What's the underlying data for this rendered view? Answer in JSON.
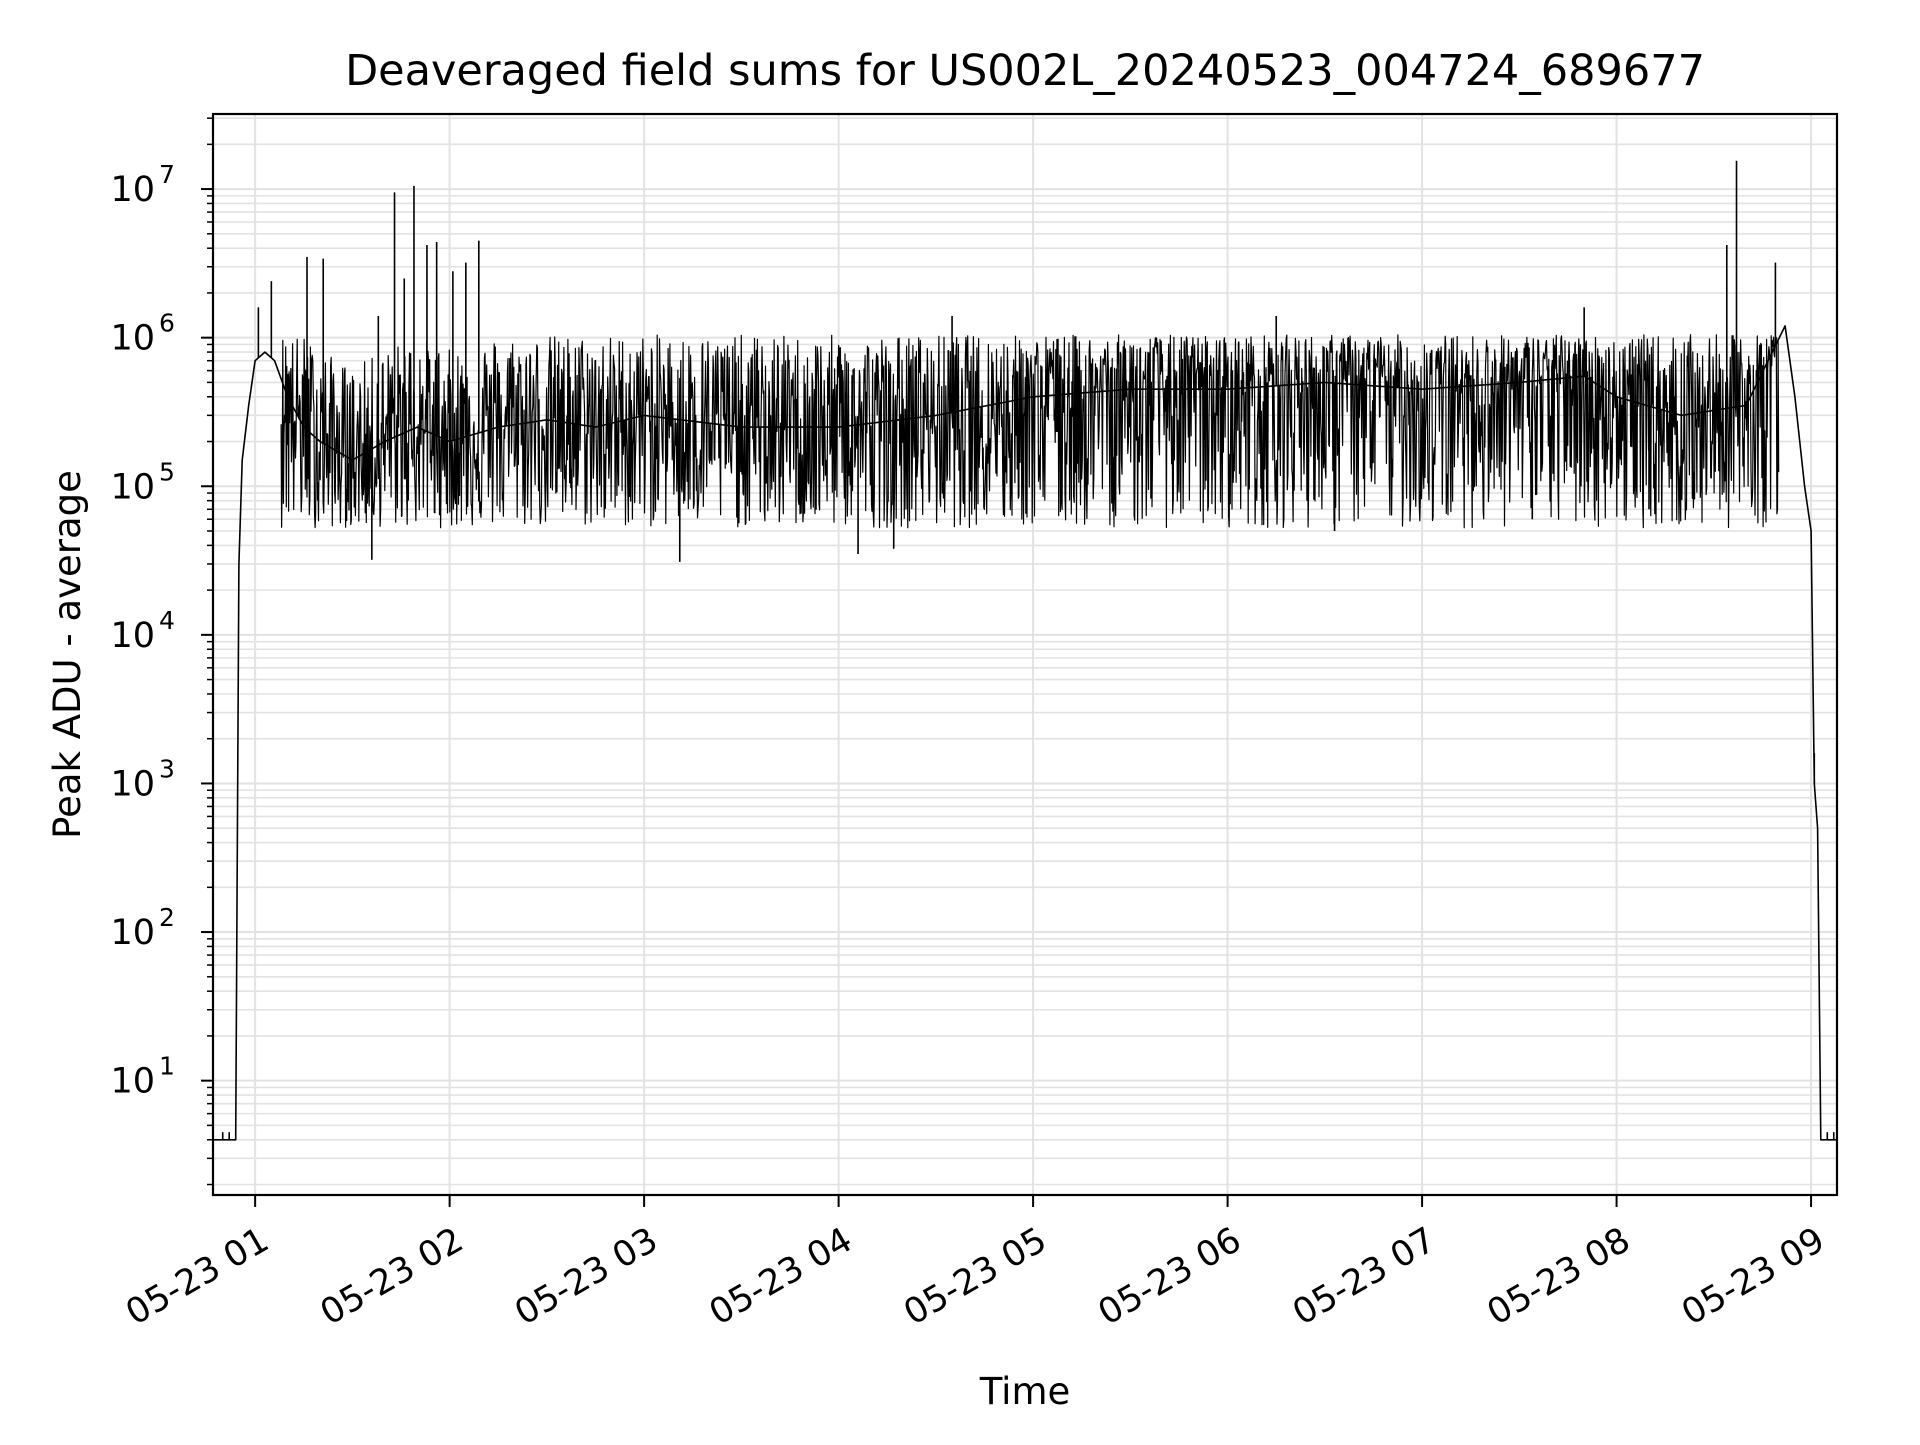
{
  "chart_data": {
    "type": "line",
    "title": "Deaveraged field sums for US002L_20240523_004724_689677",
    "xlabel": "Time",
    "ylabel": "Peak ADU - average",
    "yscale": "log",
    "ylim": [
      1.7,
      32000000.0
    ],
    "xlim": [
      "2024-05-23 00:47",
      "2024-05-23 09:08"
    ],
    "grid": true,
    "x_ticks": [
      {
        "value": "2024-05-23 01:00",
        "label": "05-23 01"
      },
      {
        "value": "2024-05-23 02:00",
        "label": "05-23 02"
      },
      {
        "value": "2024-05-23 03:00",
        "label": "05-23 03"
      },
      {
        "value": "2024-05-23 04:00",
        "label": "05-23 04"
      },
      {
        "value": "2024-05-23 05:00",
        "label": "05-23 05"
      },
      {
        "value": "2024-05-23 06:00",
        "label": "05-23 06"
      },
      {
        "value": "2024-05-23 07:00",
        "label": "05-23 07"
      },
      {
        "value": "2024-05-23 08:00",
        "label": "05-23 08"
      },
      {
        "value": "2024-05-23 09:00",
        "label": "05-23 09"
      }
    ],
    "y_ticks": [
      {
        "value": 10,
        "base": "10",
        "exp": "1"
      },
      {
        "value": 100,
        "base": "10",
        "exp": "2"
      },
      {
        "value": 1000,
        "base": "10",
        "exp": "3"
      },
      {
        "value": 10000,
        "base": "10",
        "exp": "4"
      },
      {
        "value": 100000,
        "base": "10",
        "exp": "5"
      },
      {
        "value": 1000000,
        "base": "10",
        "exp": "6"
      },
      {
        "value": 10000000,
        "base": "10",
        "exp": "7"
      }
    ],
    "series": [
      {
        "color": "#000000",
        "x": [
          "2024-05-23 00:47",
          "2024-05-23 00:54",
          "2024-05-23 00:55",
          "2024-05-23 00:56",
          "2024-05-23 00:58",
          "2024-05-23 01:00",
          "2024-05-23 01:03",
          "2024-05-23 01:06",
          "2024-05-23 01:10",
          "2024-05-23 01:15",
          "2024-05-23 01:20",
          "2024-05-23 01:30",
          "2024-05-23 01:40",
          "2024-05-23 01:50",
          "2024-05-23 02:00",
          "2024-05-23 02:15",
          "2024-05-23 02:30",
          "2024-05-23 02:45",
          "2024-05-23 03:00",
          "2024-05-23 03:30",
          "2024-05-23 04:00",
          "2024-05-23 04:30",
          "2024-05-23 05:00",
          "2024-05-23 05:30",
          "2024-05-23 06:00",
          "2024-05-23 06:30",
          "2024-05-23 07:00",
          "2024-05-23 07:30",
          "2024-05-23 07:50",
          "2024-05-23 08:00",
          "2024-05-23 08:20",
          "2024-05-23 08:40",
          "2024-05-23 08:48",
          "2024-05-23 08:52",
          "2024-05-23 08:55",
          "2024-05-23 08:58",
          "2024-05-23 09:00",
          "2024-05-23 09:01",
          "2024-05-23 09:02",
          "2024-05-23 09:03",
          "2024-05-23 09:08"
        ],
        "y": [
          4,
          4,
          30000,
          150000,
          350000,
          700000,
          800000,
          700000,
          400000,
          250000,
          200000,
          150000,
          200000,
          250000,
          200000,
          250000,
          280000,
          250000,
          300000,
          250000,
          250000,
          300000,
          400000,
          450000,
          450000,
          500000,
          450000,
          500000,
          550000,
          400000,
          300000,
          350000,
          800000,
          1200000,
          400000,
          100000,
          50000,
          1000,
          500,
          4,
          4
        ]
      }
    ],
    "spikes": [
      {
        "x": "2024-05-23 00:50",
        "y": 4.5
      },
      {
        "x": "2024-05-23 00:52",
        "y": 4.5
      },
      {
        "x": "2024-05-23 01:01",
        "y": 1600000
      },
      {
        "x": "2024-05-23 01:05",
        "y": 2400000
      },
      {
        "x": "2024-05-23 01:16",
        "y": 3500000
      },
      {
        "x": "2024-05-23 01:21",
        "y": 3400000
      },
      {
        "x": "2024-05-23 01:38",
        "y": 1400000
      },
      {
        "x": "2024-05-23 01:43",
        "y": 9500000
      },
      {
        "x": "2024-05-23 01:46",
        "y": 2500000
      },
      {
        "x": "2024-05-23 01:49",
        "y": 10500000
      },
      {
        "x": "2024-05-23 01:53",
        "y": 4200000
      },
      {
        "x": "2024-05-23 01:56",
        "y": 4400000
      },
      {
        "x": "2024-05-23 02:01",
        "y": 2800000
      },
      {
        "x": "2024-05-23 02:05",
        "y": 3200000
      },
      {
        "x": "2024-05-23 02:09",
        "y": 4500000
      },
      {
        "x": "2024-05-23 04:35",
        "y": 1400000
      },
      {
        "x": "2024-05-23 06:15",
        "y": 1400000
      },
      {
        "x": "2024-05-23 07:50",
        "y": 1600000
      },
      {
        "x": "2024-05-23 08:34",
        "y": 4200000
      },
      {
        "x": "2024-05-23 08:37",
        "y": 15500000
      },
      {
        "x": "2024-05-23 08:49",
        "y": 3200000
      },
      {
        "x": "2024-05-23 09:01",
        "y": 1600
      },
      {
        "x": "2024-05-23 09:05",
        "y": 4.5
      },
      {
        "x": "2024-05-23 09:07",
        "y": 4.5
      }
    ],
    "dips": [
      {
        "x": "2024-05-23 01:36",
        "y": 32000
      },
      {
        "x": "2024-05-23 03:11",
        "y": 31000
      },
      {
        "x": "2024-05-23 04:06",
        "y": 35000
      },
      {
        "x": "2024-05-23 04:17",
        "y": 38000
      },
      {
        "x": "2024-05-23 06:33",
        "y": 50000
      },
      {
        "x": "2024-05-23 07:34",
        "y": 60000
      },
      {
        "x": "2024-05-23 08:10",
        "y": 70000
      }
    ]
  }
}
